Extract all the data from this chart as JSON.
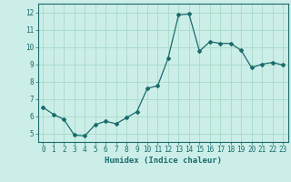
{
  "x": [
    0,
    1,
    2,
    3,
    4,
    5,
    6,
    7,
    8,
    9,
    10,
    11,
    12,
    13,
    14,
    15,
    16,
    17,
    18,
    19,
    20,
    21,
    22,
    23
  ],
  "y": [
    6.5,
    6.1,
    5.8,
    4.9,
    4.85,
    5.5,
    5.7,
    5.55,
    5.9,
    6.25,
    7.6,
    7.75,
    9.35,
    11.85,
    11.9,
    9.75,
    10.3,
    10.2,
    10.2,
    9.8,
    8.8,
    9.0,
    9.1,
    8.95
  ],
  "line_color": "#1a6b6b",
  "bg_color": "#cceee8",
  "grid_color": "#aaddcc",
  "xlabel": "Humidex (Indice chaleur)",
  "ylabel_ticks": [
    5,
    6,
    7,
    8,
    9,
    10,
    11,
    12
  ],
  "xticks": [
    0,
    1,
    2,
    3,
    4,
    5,
    6,
    7,
    8,
    9,
    10,
    11,
    12,
    13,
    14,
    15,
    16,
    17,
    18,
    19,
    20,
    21,
    22,
    23
  ],
  "xlim": [
    -0.5,
    23.5
  ],
  "ylim": [
    4.5,
    12.5
  ],
  "xlabel_fontsize": 6.5,
  "tick_fontsize": 5.5,
  "marker": "D",
  "marker_size": 2.0,
  "line_width": 0.9
}
